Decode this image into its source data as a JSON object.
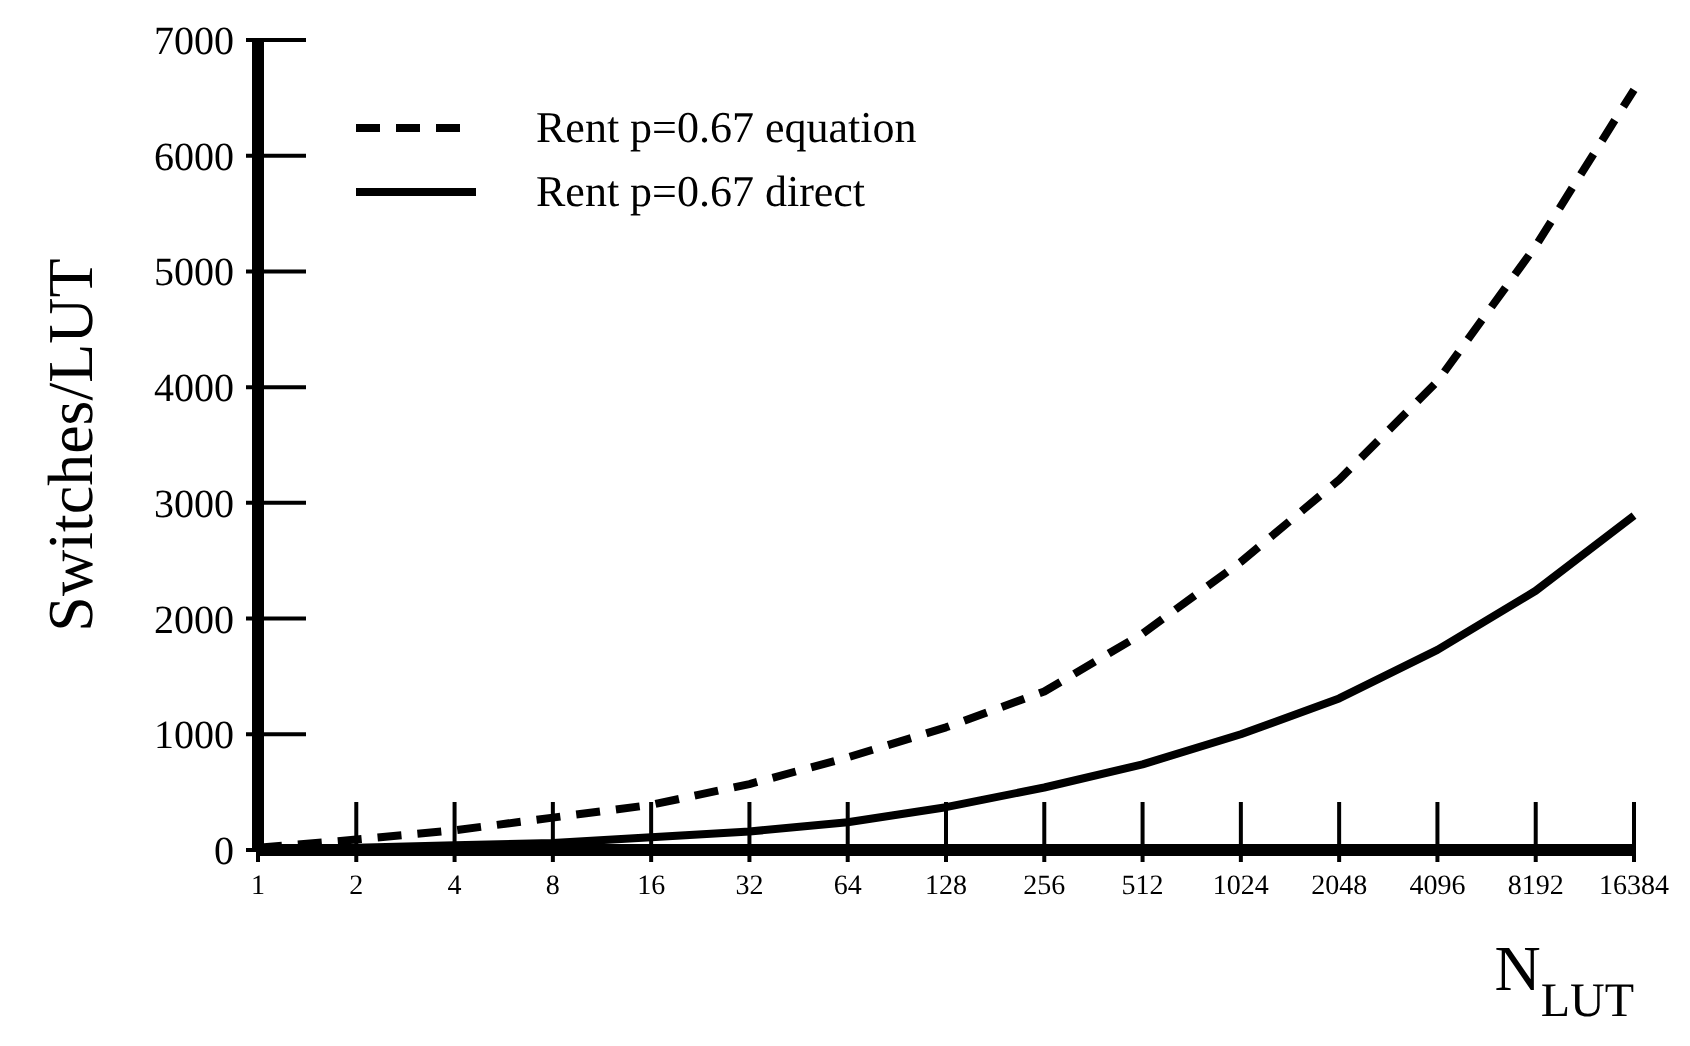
{
  "chart_data": {
    "type": "line",
    "xlabel": "N$_{LUT}$",
    "ylabel": "Switches/LUT",
    "categories": [
      "1",
      "2",
      "4",
      "8",
      "16",
      "32",
      "64",
      "128",
      "256",
      "512",
      "1024",
      "2048",
      "4096",
      "8192",
      "16384"
    ],
    "series": [
      {
        "name": "Rent p=0.67 equation",
        "color": "#000000",
        "line_style": "dashed",
        "values": [
          20,
          90,
          170,
          280,
          390,
          570,
          800,
          1060,
          1370,
          1870,
          2490,
          3200,
          4050,
          5220,
          6570
        ]
      },
      {
        "name": "Rent p=0.67 direct",
        "color": "#000000",
        "line_style": "solid",
        "values": [
          0,
          20,
          40,
          60,
          110,
          160,
          240,
          370,
          540,
          740,
          1000,
          1310,
          1730,
          2240,
          2890
        ]
      }
    ],
    "ylim": [
      0,
      7000
    ],
    "yticks": [
      0,
      1000,
      2000,
      3000,
      4000,
      5000,
      6000,
      7000
    ],
    "grid": false,
    "legend": "top left",
    "marker": "none"
  }
}
